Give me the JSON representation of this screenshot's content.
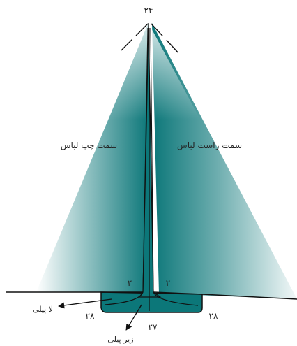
{
  "labels": {
    "top_number": "۲۴",
    "left_side": "سمت چپ لباس",
    "right_side": "سمت راست لباس",
    "fold_left": "۲",
    "fold_right": "۲",
    "lapel_callout": "لا پیلی",
    "underlap_callout": "زیر پیلی",
    "bottom_center": "۲۷",
    "bottom_left": "۲۸",
    "bottom_right": "۲۸"
  },
  "colors": {
    "fabric": "#0c7779",
    "line": "#111111"
  }
}
